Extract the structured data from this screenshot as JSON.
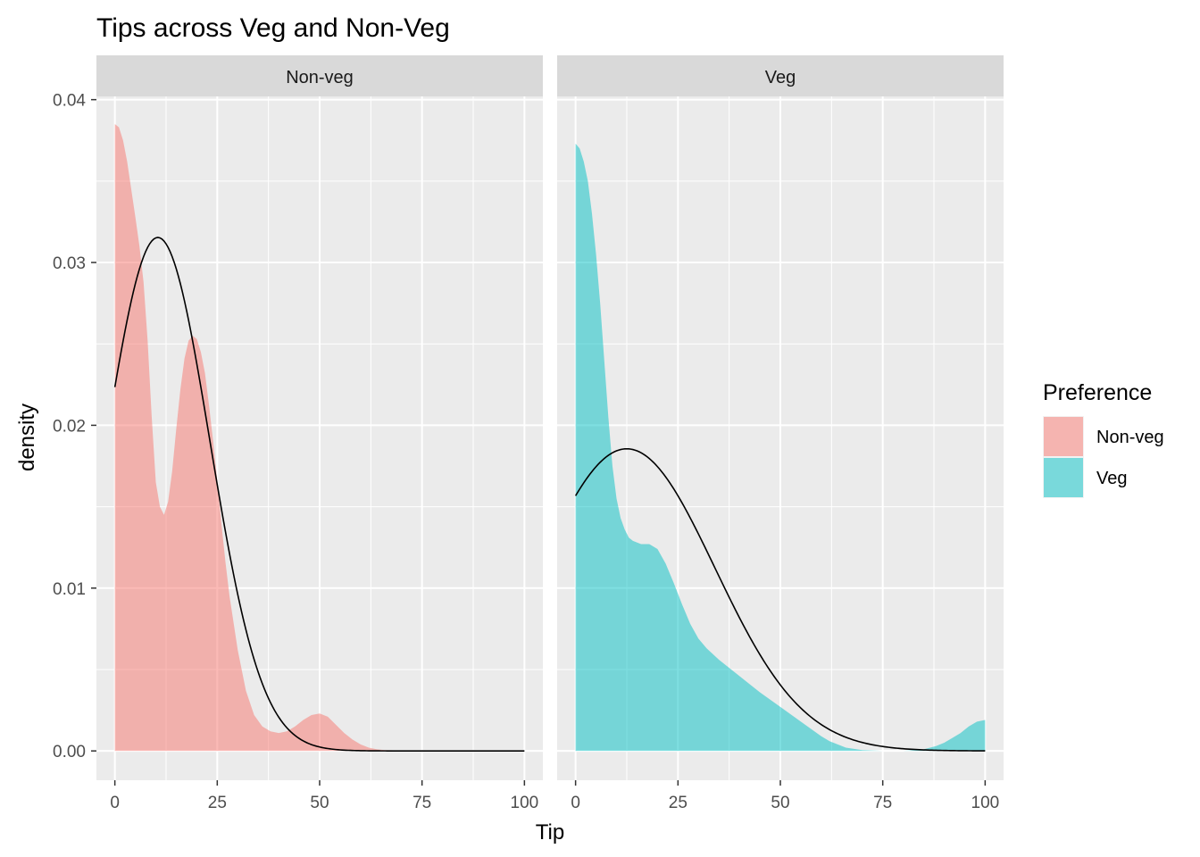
{
  "chart_data": {
    "type": "area",
    "title": "Tips across Veg and Non-Veg",
    "xlabel": "Tip",
    "ylabel": "density",
    "xlim": [
      -4.5,
      104.5
    ],
    "ylim": [
      -0.0018,
      0.0402
    ],
    "x_ticks": [
      0,
      25,
      50,
      75,
      100
    ],
    "x_tick_labels": [
      "0",
      "25",
      "50",
      "75",
      "100"
    ],
    "y_ticks": [
      0,
      0.01,
      0.02,
      0.03,
      0.04
    ],
    "y_tick_labels": [
      "0.00",
      "0.01",
      "0.02",
      "0.03",
      "0.04"
    ],
    "grid": true,
    "legend": {
      "title": "Preference",
      "position": "right",
      "entries": [
        {
          "label": "Non-veg",
          "color": "#F8766D"
        },
        {
          "label": "Veg",
          "color": "#00BFC4"
        }
      ]
    },
    "panels": [
      {
        "strip": "Non-veg",
        "fill": "#F8766D",
        "fill_opacity": 0.5,
        "density": {
          "x": [
            0,
            1,
            2,
            3,
            4,
            5,
            6,
            7,
            8,
            9,
            10,
            11,
            12,
            13,
            14,
            15,
            16,
            17,
            18,
            19,
            20,
            21,
            22,
            23,
            24,
            25,
            26,
            27,
            28,
            30,
            32,
            34,
            36,
            38,
            40,
            42,
            44,
            46,
            48,
            50,
            52,
            54,
            56,
            58,
            60,
            62,
            64,
            66,
            70,
            75,
            80,
            90,
            100
          ],
          "y": [
            0.0385,
            0.0383,
            0.0375,
            0.0362,
            0.0345,
            0.0328,
            0.031,
            0.0288,
            0.0252,
            0.0205,
            0.0165,
            0.015,
            0.0145,
            0.0153,
            0.0172,
            0.0198,
            0.0222,
            0.0241,
            0.0252,
            0.0255,
            0.0253,
            0.0245,
            0.0232,
            0.0212,
            0.019,
            0.0166,
            0.014,
            0.0116,
            0.0095,
            0.0062,
            0.0037,
            0.0022,
            0.0015,
            0.0012,
            0.0011,
            0.0012,
            0.0015,
            0.0019,
            0.0022,
            0.0023,
            0.0021,
            0.0016,
            0.0011,
            0.0007,
            0.0004,
            0.0002,
            0.0001,
            5e-05,
            2e-05,
            0.0,
            0.0,
            0.0,
            0.0
          ]
        },
        "normal_curve": {
          "mean": 10.5,
          "sd": 12.65
        }
      },
      {
        "strip": "Veg",
        "fill": "#00BFC4",
        "fill_opacity": 0.5,
        "density": {
          "x": [
            0,
            1,
            2,
            3,
            4,
            5,
            6,
            7,
            8,
            9,
            10,
            11,
            12,
            13,
            14,
            16,
            18,
            20,
            22,
            24,
            26,
            28,
            30,
            32,
            35,
            40,
            45,
            50,
            55,
            60,
            62,
            64,
            66,
            70,
            75,
            80,
            85,
            88,
            90,
            92,
            94,
            96,
            98,
            100
          ],
          "y": [
            0.0373,
            0.037,
            0.0362,
            0.035,
            0.033,
            0.0305,
            0.0275,
            0.024,
            0.0205,
            0.0175,
            0.0155,
            0.0143,
            0.0136,
            0.0131,
            0.0129,
            0.0127,
            0.0127,
            0.0124,
            0.0115,
            0.0103,
            0.009,
            0.0078,
            0.0069,
            0.0063,
            0.0056,
            0.0046,
            0.0036,
            0.0027,
            0.0018,
            0.0009,
            0.0006,
            0.0004,
            0.0002,
            5e-05,
            0.0,
            0.0,
            0.0001,
            0.0003,
            0.0005,
            0.0008,
            0.0011,
            0.0015,
            0.0018,
            0.0019
          ]
        },
        "normal_curve": {
          "mean": 12.5,
          "sd": 21.5
        }
      }
    ]
  }
}
